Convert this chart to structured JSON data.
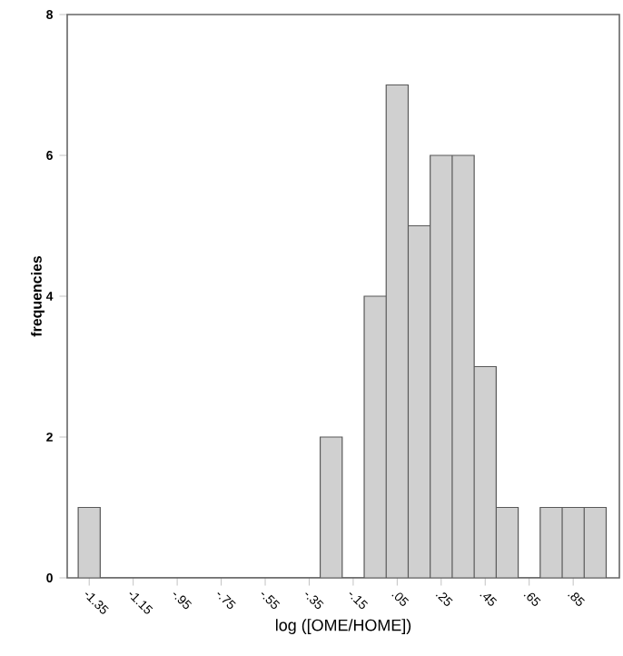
{
  "chart_data": {
    "type": "histogram",
    "xlabel": "log ([OME/HOME])",
    "ylabel": "frequencies",
    "bins": [
      -1.4,
      -1.3,
      -1.2,
      -1.1,
      -1.0,
      -0.9,
      -0.8,
      -0.7,
      -0.6,
      -0.5,
      -0.4,
      -0.3,
      -0.2,
      -0.1,
      0.0,
      0.1,
      0.2,
      0.3,
      0.4,
      0.5,
      0.6,
      0.7,
      0.8,
      0.9,
      1.0
    ],
    "values": [
      1,
      0,
      0,
      0,
      0,
      0,
      0,
      0,
      0,
      0,
      0,
      2,
      0,
      4,
      7,
      5,
      6,
      6,
      3,
      1,
      0,
      1,
      1,
      1
    ],
    "color": "#d0d0d0",
    "xlim": [
      -1.45,
      1.06
    ],
    "xticks": [
      {
        "value": -1.35,
        "label": "-1.35"
      },
      {
        "value": -1.15,
        "label": "-1.15"
      },
      {
        "value": -0.95,
        "label": "-.95"
      },
      {
        "value": -0.75,
        "label": "-.75"
      },
      {
        "value": -0.55,
        "label": "-.55"
      },
      {
        "value": -0.35,
        "label": "-.35"
      },
      {
        "value": -0.15,
        "label": "-.15"
      },
      {
        "value": 0.05,
        "label": ".05"
      },
      {
        "value": 0.25,
        "label": ".25"
      },
      {
        "value": 0.45,
        "label": ".45"
      },
      {
        "value": 0.65,
        "label": ".65"
      },
      {
        "value": 0.85,
        "label": ".85"
      }
    ],
    "ylim": [
      0,
      8
    ],
    "yticks": [
      0,
      2,
      4,
      6,
      8
    ]
  }
}
